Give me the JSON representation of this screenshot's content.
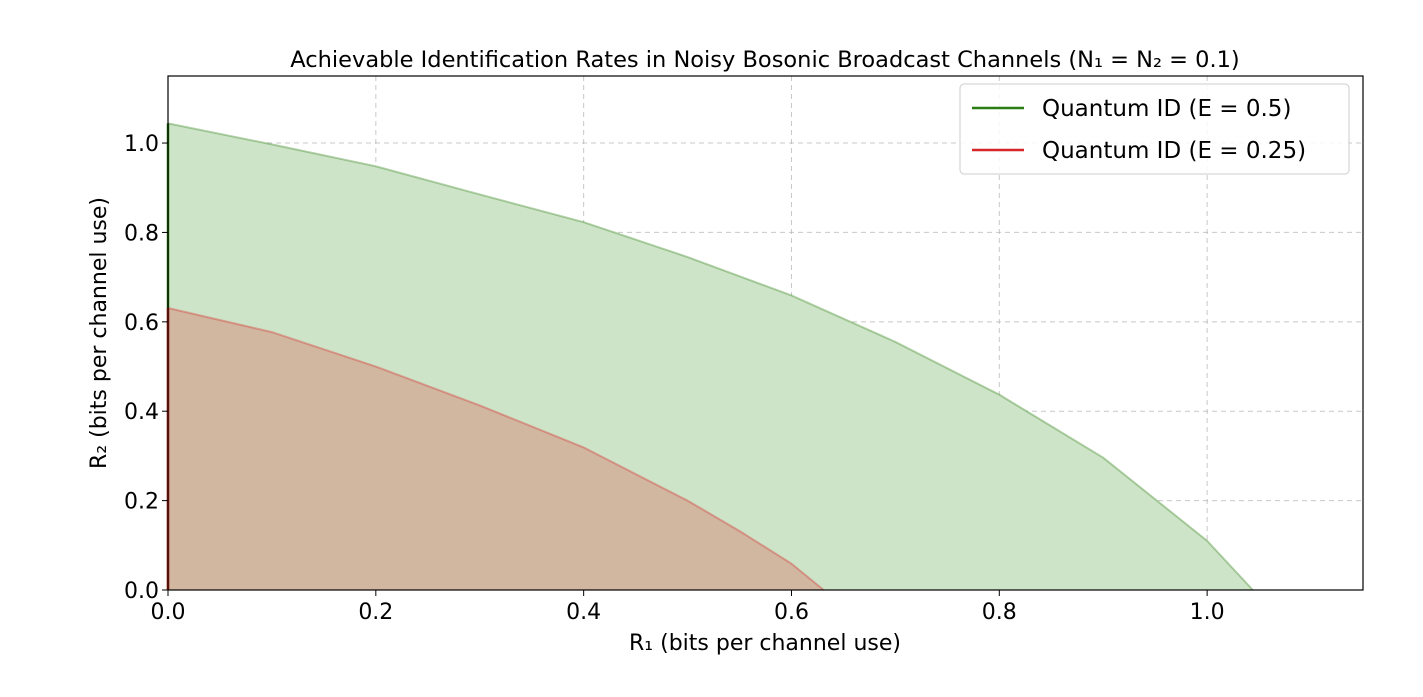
{
  "chart_data": {
    "type": "area",
    "title": "Achievable Identification Rates in Noisy Bosonic Broadcast Channels (N₁ = N₂ = 0.1)",
    "xlabel": "R₁ (bits per channel use)",
    "ylabel": "R₂ (bits per channel use)",
    "xlim": [
      0,
      1.15
    ],
    "ylim": [
      0,
      1.15
    ],
    "xticks": [
      "0.0",
      "0.2",
      "0.4",
      "0.6",
      "0.8",
      "1.0"
    ],
    "yticks": [
      "0.0",
      "0.2",
      "0.4",
      "0.6",
      "0.8",
      "1.0"
    ],
    "grid": true,
    "legend_position": "top-right",
    "series": [
      {
        "name": "Quantum ID (E = 0.5)",
        "color": "#2a7d12",
        "fill": "#cee4c8",
        "x": [
          0.0,
          0.1,
          0.2,
          0.3,
          0.4,
          0.5,
          0.6,
          0.7,
          0.8,
          0.9,
          1.0,
          1.044
        ],
        "y": [
          1.044,
          0.997,
          0.948,
          0.885,
          0.823,
          0.745,
          0.659,
          0.555,
          0.437,
          0.296,
          0.11,
          0.0
        ]
      },
      {
        "name": "Quantum ID (E = 0.25)",
        "color": "#d62728",
        "fill": "#d1b6a0",
        "x": [
          0.0,
          0.1,
          0.2,
          0.3,
          0.4,
          0.5,
          0.55,
          0.6,
          0.631
        ],
        "y": [
          0.631,
          0.577,
          0.5,
          0.413,
          0.319,
          0.2,
          0.132,
          0.059,
          0.0
        ]
      }
    ]
  }
}
